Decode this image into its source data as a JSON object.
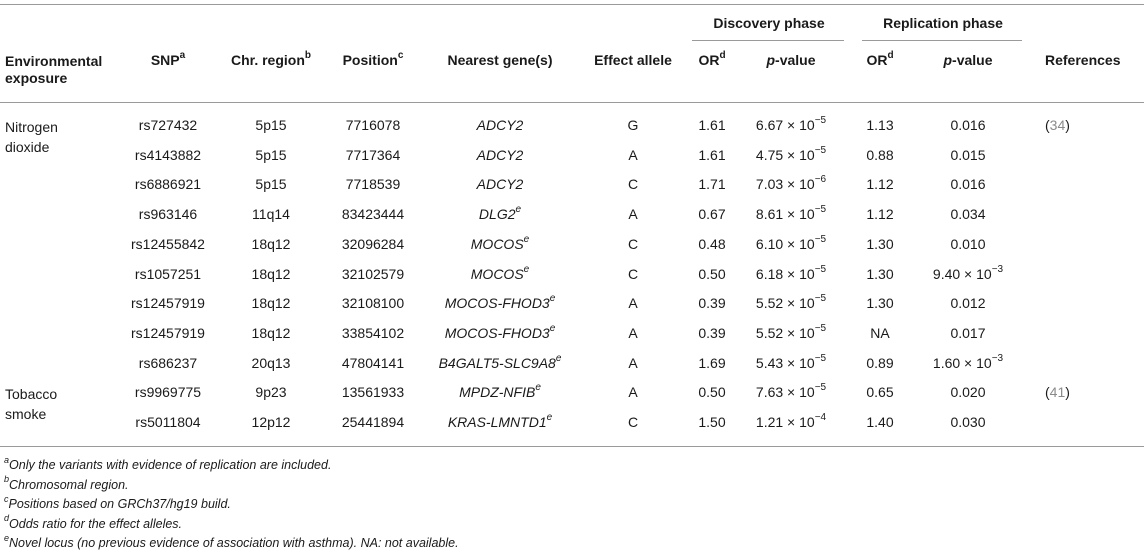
{
  "header": {
    "env": [
      "Environmental",
      "exposure"
    ],
    "snp": "SNP",
    "snp_sup": "a",
    "chr": "Chr. region",
    "chr_sup": "b",
    "pos": "Position",
    "pos_sup": "c",
    "gene": "Nearest gene(s)",
    "allele": "Effect allele",
    "discovery": "Discovery phase",
    "replication": "Replication phase",
    "or": "OR",
    "or_sup": "d",
    "p": "p",
    "p_rest": "-value",
    "refs": "References"
  },
  "groups": [
    {
      "label": [
        "Nitrogen",
        "dioxide"
      ],
      "ref": "34",
      "row_start": 0
    },
    {
      "label": [
        "Tobacco",
        "smoke"
      ],
      "ref": "41",
      "row_start": 9
    }
  ],
  "rows": [
    {
      "snp": "rs727432",
      "chr": "5p15",
      "pos": "7716078",
      "gene": "ADCY2",
      "gene_sup": "",
      "allele": "G",
      "or1": "1.61",
      "p1": "6.67 × 10",
      "p1_exp": "−5",
      "or2": "1.13",
      "p2": "0.016",
      "p2_exp": ""
    },
    {
      "snp": "rs4143882",
      "chr": "5p15",
      "pos": "7717364",
      "gene": "ADCY2",
      "gene_sup": "",
      "allele": "A",
      "or1": "1.61",
      "p1": "4.75 × 10",
      "p1_exp": "−5",
      "or2": "0.88",
      "p2": "0.015",
      "p2_exp": ""
    },
    {
      "snp": "rs6886921",
      "chr": "5p15",
      "pos": "7718539",
      "gene": "ADCY2",
      "gene_sup": "",
      "allele": "C",
      "or1": "1.71",
      "p1": "7.03 × 10",
      "p1_exp": "−6",
      "or2": "1.12",
      "p2": "0.016",
      "p2_exp": ""
    },
    {
      "snp": "rs963146",
      "chr": "11q14",
      "pos": "83423444",
      "gene": "DLG2",
      "gene_sup": "e",
      "allele": "A",
      "or1": "0.67",
      "p1": "8.61 × 10",
      "p1_exp": "−5",
      "or2": "1.12",
      "p2": "0.034",
      "p2_exp": ""
    },
    {
      "snp": "rs12455842",
      "chr": "18q12",
      "pos": "32096284",
      "gene": "MOCOS",
      "gene_sup": "e",
      "allele": "C",
      "or1": "0.48",
      "p1": "6.10 × 10",
      "p1_exp": "−5",
      "or2": "1.30",
      "p2": "0.010",
      "p2_exp": ""
    },
    {
      "snp": "rs1057251",
      "chr": "18q12",
      "pos": "32102579",
      "gene": "MOCOS",
      "gene_sup": "e",
      "allele": "C",
      "or1": "0.50",
      "p1": "6.18 × 10",
      "p1_exp": "−5",
      "or2": "1.30",
      "p2": "9.40 × 10",
      "p2_exp": "−3"
    },
    {
      "snp": "rs12457919",
      "chr": "18q12",
      "pos": "32108100",
      "gene": "MOCOS-FHOD3",
      "gene_sup": "e",
      "allele": "A",
      "or1": "0.39",
      "p1": "5.52 × 10",
      "p1_exp": "−5",
      "or2": "1.30",
      "p2": "0.012",
      "p2_exp": ""
    },
    {
      "snp": "rs12457919",
      "chr": "18q12",
      "pos": "33854102",
      "gene": "MOCOS-FHOD3",
      "gene_sup": "e",
      "allele": "A",
      "or1": "0.39",
      "p1": "5.52 × 10",
      "p1_exp": "−5",
      "or2": "NA",
      "p2": "0.017",
      "p2_exp": ""
    },
    {
      "snp": "rs686237",
      "chr": "20q13",
      "pos": "47804141",
      "gene": "B4GALT5-SLC9A8",
      "gene_sup": "e",
      "allele": "A",
      "or1": "1.69",
      "p1": "5.43 × 10",
      "p1_exp": "−5",
      "or2": "0.89",
      "p2": "1.60 × 10",
      "p2_exp": "−3"
    },
    {
      "snp": "rs9969775",
      "chr": "9p23",
      "pos": "13561933",
      "gene": "MPDZ-NFIB",
      "gene_sup": "e",
      "allele": "A",
      "or1": "0.50",
      "p1": "7.63 × 10",
      "p1_exp": "−5",
      "or2": "0.65",
      "p2": "0.020",
      "p2_exp": ""
    },
    {
      "snp": "rs5011804",
      "chr": "12p12",
      "pos": "25441894",
      "gene": "KRAS-LMNTD1",
      "gene_sup": "e",
      "allele": "C",
      "or1": "1.50",
      "p1": "1.21 × 10",
      "p1_exp": "−4",
      "or2": "1.40",
      "p2": "0.030",
      "p2_exp": ""
    }
  ],
  "footnotes": [
    {
      "mark": "a",
      "text": "Only the variants with evidence of replication are included."
    },
    {
      "mark": "b",
      "text": "Chromosomal region."
    },
    {
      "mark": "c",
      "text": "Positions based on GRCh37/hg19 build."
    },
    {
      "mark": "d",
      "text": "Odds ratio for the effect alleles."
    },
    {
      "mark": "e",
      "text": "Novel locus (no previous evidence of association with asthma). NA: not available."
    }
  ]
}
